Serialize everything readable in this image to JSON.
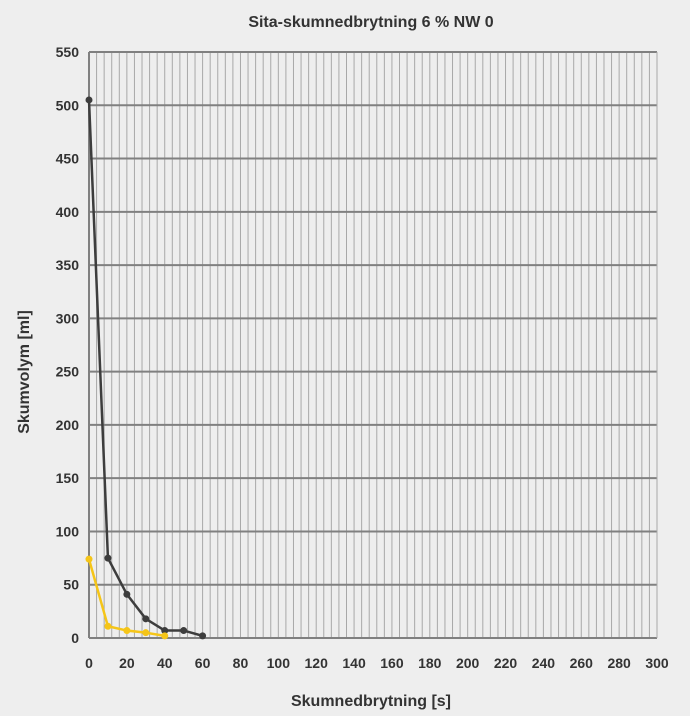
{
  "chart_data": {
    "type": "line",
    "title": "Sita-skumnedbrytning 6 % NW 0",
    "xlabel": "Skumnedbrytning [s]",
    "ylabel": "Skumvolym [ml]",
    "xlim": [
      0,
      300
    ],
    "ylim": [
      0,
      550
    ],
    "x_ticks": [
      "0",
      "20",
      "40",
      "60",
      "80",
      "100",
      "120",
      "140",
      "160",
      "180",
      "200",
      "220",
      "240",
      "260",
      "280",
      "300"
    ],
    "y_ticks": [
      "0",
      "50",
      "100",
      "150",
      "200",
      "250",
      "300",
      "350",
      "400",
      "450",
      "500",
      "550"
    ],
    "grid": true,
    "legend": "none",
    "series": [
      {
        "color": "#3d3d3d",
        "points": [
          [
            0,
            505
          ],
          [
            10,
            75
          ],
          [
            20,
            41
          ],
          [
            30,
            18
          ],
          [
            40,
            7
          ],
          [
            50,
            7
          ],
          [
            60,
            2
          ]
        ]
      },
      {
        "color": "#f5c518",
        "points": [
          [
            0,
            74
          ],
          [
            10,
            11
          ],
          [
            20,
            7
          ],
          [
            30,
            5
          ],
          [
            40,
            2
          ]
        ]
      }
    ]
  }
}
